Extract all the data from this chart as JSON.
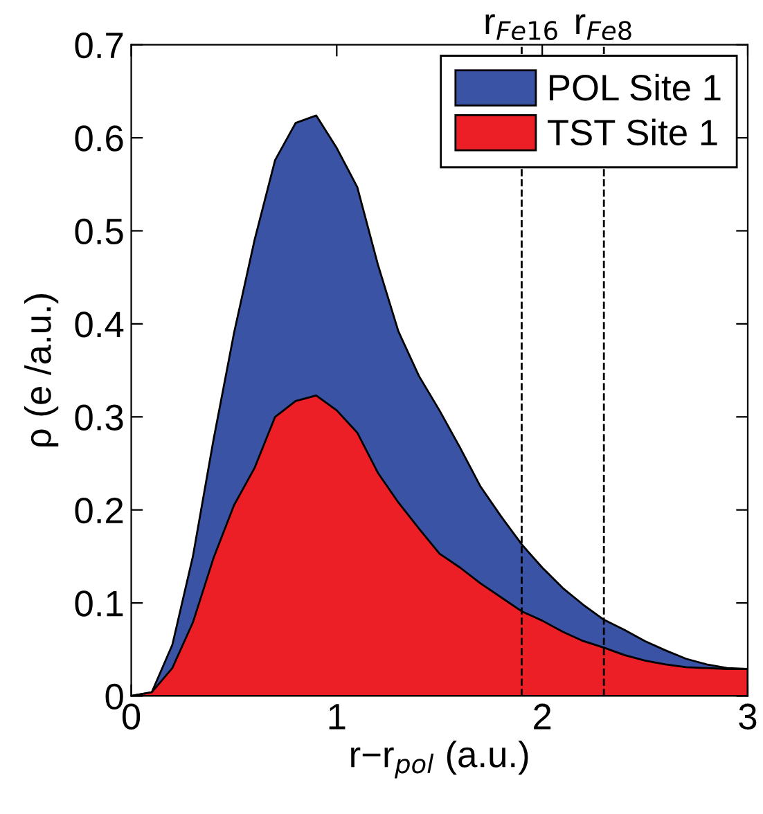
{
  "chart_data": {
    "type": "area",
    "xlabel": "r−r$_{pol}$ (a.u.)",
    "ylabel": "ρ (e /a.u.)",
    "x": [
      0,
      0.1,
      0.2,
      0.3,
      0.4,
      0.5,
      0.6,
      0.7,
      0.8,
      0.9,
      1.0,
      1.1,
      1.2,
      1.3,
      1.4,
      1.5,
      1.6,
      1.7,
      1.8,
      1.9,
      2.0,
      2.1,
      2.2,
      2.3,
      2.4,
      2.5,
      2.6,
      2.7,
      2.8,
      2.9,
      3.0
    ],
    "series": [
      {
        "name": "POL Site 1",
        "color": "#3a53a4",
        "values": [
          0,
          0.004,
          0.055,
          0.15,
          0.275,
          0.39,
          0.49,
          0.576,
          0.616,
          0.624,
          0.589,
          0.547,
          0.464,
          0.392,
          0.344,
          0.307,
          0.267,
          0.225,
          0.193,
          0.163,
          0.138,
          0.116,
          0.098,
          0.082,
          0.071,
          0.059,
          0.049,
          0.04,
          0.034,
          0.03,
          0.029
        ]
      },
      {
        "name": "TST Site 1",
        "color": "#ec1f26",
        "values": [
          0,
          0.004,
          0.03,
          0.079,
          0.148,
          0.205,
          0.245,
          0.3,
          0.317,
          0.323,
          0.307,
          0.283,
          0.24,
          0.208,
          0.18,
          0.153,
          0.138,
          0.121,
          0.106,
          0.091,
          0.081,
          0.069,
          0.059,
          0.052,
          0.044,
          0.038,
          0.034,
          0.031,
          0.03,
          0.029,
          0.029
        ]
      }
    ],
    "xlim": [
      0,
      3
    ],
    "xticks": [
      0,
      1,
      2,
      3
    ],
    "ylim": [
      0,
      0.7
    ],
    "yticks": [
      0,
      0.1,
      0.2,
      0.3,
      0.4,
      0.5,
      0.6,
      0.7
    ],
    "ref_lines": [
      {
        "axis": "x",
        "value": 1.9,
        "label": "r$_{Fe16}$",
        "color": "#000000",
        "line_style": "dashed"
      },
      {
        "axis": "x",
        "value": 2.3,
        "label": "r$_{Fe8}$",
        "color": "#000000",
        "line_style": "dashed"
      }
    ],
    "legend": "top right",
    "grid": false
  }
}
